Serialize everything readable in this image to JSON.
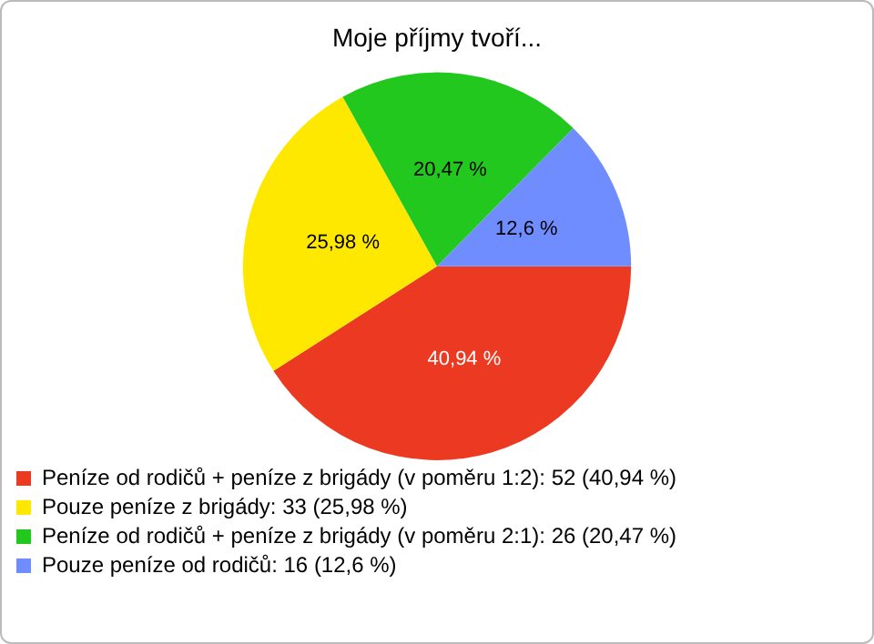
{
  "chart_data": {
    "type": "pie",
    "title": "Moje příjmy tvoří...",
    "categories": [
      "Peníze od rodičů + peníze z brigády (v poměru 1:2): 52 (40,94 %)",
      "Pouze peníze z brigády: 33 (25,98 %)",
      "Peníze od rodičů + peníze z brigády (v poměru 2:1): 26 (20,47 %)",
      "Pouze peníze od rodičů: 16 (12,6 %)"
    ],
    "values": [
      40.94,
      25.98,
      20.47,
      12.6
    ],
    "value_labels": [
      "40,94 %",
      "25,98 %",
      "20,47 %",
      "12,6 %"
    ],
    "colors": [
      "#ec3a22",
      "#ffe800",
      "#22c81e",
      "#6f8dff"
    ],
    "legend": "bottom"
  }
}
